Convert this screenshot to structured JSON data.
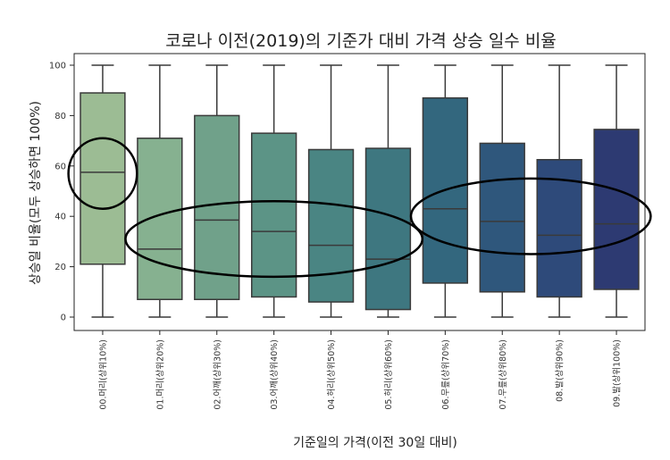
{
  "chart_data": {
    "type": "box",
    "title": "코로나 이전(2019)의 기준가 대비 가격 상승 일수 비율",
    "xlabel": "기준일의 가격(이전 30일 대비)",
    "ylabel": "상승일 비율(모두 상승하면 100%)",
    "ylim": [
      0,
      100
    ],
    "yticks": [
      0,
      20,
      40,
      60,
      80,
      100
    ],
    "grid": false,
    "categories": [
      "00.머리(상위10%)",
      "01.머리(상위20%)",
      "02.어깨(상위30%)",
      "03.어깨(상위40%)",
      "04.허리(상위50%)",
      "05.허리(상위60%)",
      "06.무릎(상위70%)",
      "07.무릎(상위80%)",
      "08.발(상위90%)",
      "09.발(상위100%)"
    ],
    "boxes": [
      {
        "min": 0,
        "q1": 21,
        "median": 57.5,
        "q3": 89,
        "max": 100,
        "color": "#9cbc94"
      },
      {
        "min": 0,
        "q1": 7,
        "median": 27,
        "q3": 71,
        "max": 100,
        "color": "#86b190"
      },
      {
        "min": 0,
        "q1": 7,
        "median": 38.5,
        "q3": 80,
        "max": 100,
        "color": "#70a18a"
      },
      {
        "min": 0,
        "q1": 8,
        "median": 34,
        "q3": 73,
        "max": 100,
        "color": "#5c9486"
      },
      {
        "min": 0,
        "q1": 6,
        "median": 28.5,
        "q3": 66.5,
        "max": 100,
        "color": "#4a8583"
      },
      {
        "min": 0,
        "q1": 3,
        "median": 23,
        "q3": 67,
        "max": 100,
        "color": "#3e7780"
      },
      {
        "min": 0,
        "q1": 13.5,
        "median": 43,
        "q3": 87,
        "max": 100,
        "color": "#33677e"
      },
      {
        "min": 0,
        "q1": 10,
        "median": 38,
        "q3": 69,
        "max": 100,
        "color": "#2f577c"
      },
      {
        "min": 0,
        "q1": 8,
        "median": 32.5,
        "q3": 62.5,
        "max": 100,
        "color": "#2e4a7a"
      },
      {
        "min": 0,
        "q1": 11,
        "median": 37,
        "q3": 74.5,
        "max": 100,
        "color": "#2d3a72"
      }
    ],
    "annotations": [
      {
        "shape": "ellipse",
        "category_span": [
          0,
          0
        ],
        "y_center": 57,
        "y_radius": 14
      },
      {
        "shape": "ellipse",
        "category_span": [
          1,
          5
        ],
        "y_center": 31,
        "y_radius": 15
      },
      {
        "shape": "ellipse",
        "category_span": [
          6,
          9
        ],
        "y_center": 40,
        "y_radius": 15
      }
    ]
  }
}
